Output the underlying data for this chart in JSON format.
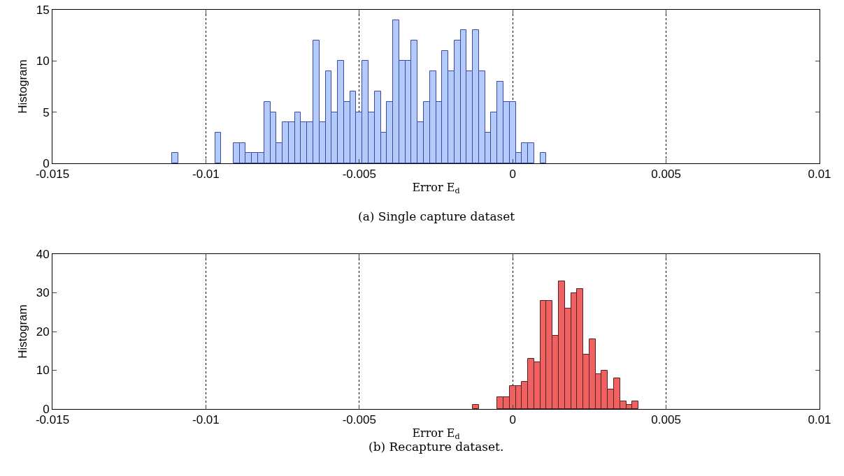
{
  "chart_data": [
    {
      "type": "histogram",
      "xlabel": "Error E$_{d}$",
      "ylabel": "Histogram",
      "annotations": [
        "(a) Single capture dataset"
      ],
      "bins": [
        -0.0111,
        -0.0109,
        -0.0107,
        -0.0105,
        -0.0103,
        -0.0101,
        -0.0099,
        -0.0097,
        -0.0095,
        -0.0093,
        -0.0091,
        -0.0089,
        -0.0087,
        -0.0085,
        -0.0083,
        -0.0081,
        -0.0079,
        -0.0077,
        -0.0075,
        -0.0073,
        -0.0071,
        -0.0069,
        -0.0067,
        -0.0065,
        -0.0063,
        -0.0061,
        -0.0059,
        -0.0057,
        -0.0055,
        -0.0053,
        -0.0051,
        -0.0049,
        -0.0047,
        -0.0045,
        -0.0043,
        -0.0041,
        -0.0039,
        -0.0037,
        -0.0035,
        -0.0033,
        -0.0031,
        -0.0029,
        -0.0027,
        -0.0025,
        -0.0023,
        -0.0021,
        -0.0019,
        -0.0017,
        -0.0015,
        -0.0013,
        -0.0011,
        -0.0009,
        -0.0007,
        -0.0005,
        -0.0003,
        -0.0001,
        0.0001,
        0.0003,
        0.0005,
        0.0007,
        0.0009,
        0.0011
      ],
      "values": [
        1,
        0,
        0,
        0,
        0,
        0,
        0,
        3,
        0,
        0,
        2,
        2,
        1,
        1,
        1,
        6,
        5,
        2,
        4,
        4,
        5,
        4,
        4,
        12,
        4,
        9,
        5,
        10,
        6,
        7,
        5,
        10,
        5,
        7,
        3,
        6,
        14,
        10,
        10,
        12,
        4,
        6,
        9,
        6,
        11,
        9,
        12,
        13,
        9,
        13,
        9,
        3,
        5,
        8,
        6,
        6,
        1,
        2,
        2,
        0,
        1
      ],
      "color": "#b3cbfb",
      "xlim": [
        -0.015,
        0.01
      ],
      "xticks": [
        -0.015,
        -0.01,
        -0.005,
        0,
        0.005,
        0.01
      ],
      "ylim": [
        0,
        15
      ],
      "yticks": [
        0,
        5,
        10,
        15
      ],
      "grid": "x"
    },
    {
      "type": "histogram",
      "xlabel": "Error E$_{d}$",
      "ylabel": "Histogram",
      "annotations": [
        "(b) Recapture dataset."
      ],
      "bins": [
        -0.0013,
        -0.0011,
        -0.0009,
        -0.0007,
        -0.0005,
        -0.0003,
        -0.0001,
        0.0001,
        0.0003,
        0.0005,
        0.0007,
        0.0009,
        0.0011,
        0.0013,
        0.0015,
        0.0017,
        0.0019,
        0.0021,
        0.0023,
        0.0025,
        0.0027,
        0.0029,
        0.0031,
        0.0033,
        0.0035,
        0.0037,
        0.0039,
        0.0041
      ],
      "values": [
        1,
        0,
        0,
        0,
        3,
        3,
        6,
        6,
        7,
        13,
        12,
        28,
        28,
        19,
        33,
        26,
        30,
        31,
        14,
        18,
        9,
        10,
        5,
        8,
        2,
        1,
        2
      ],
      "color": "#f06262",
      "xlim": [
        -0.015,
        0.01
      ],
      "xticks": [
        -0.015,
        -0.01,
        -0.005,
        0,
        0.005,
        0.01
      ],
      "ylim": [
        0,
        40
      ],
      "yticks": [
        0,
        10,
        20,
        30,
        40
      ],
      "grid": "x"
    }
  ]
}
